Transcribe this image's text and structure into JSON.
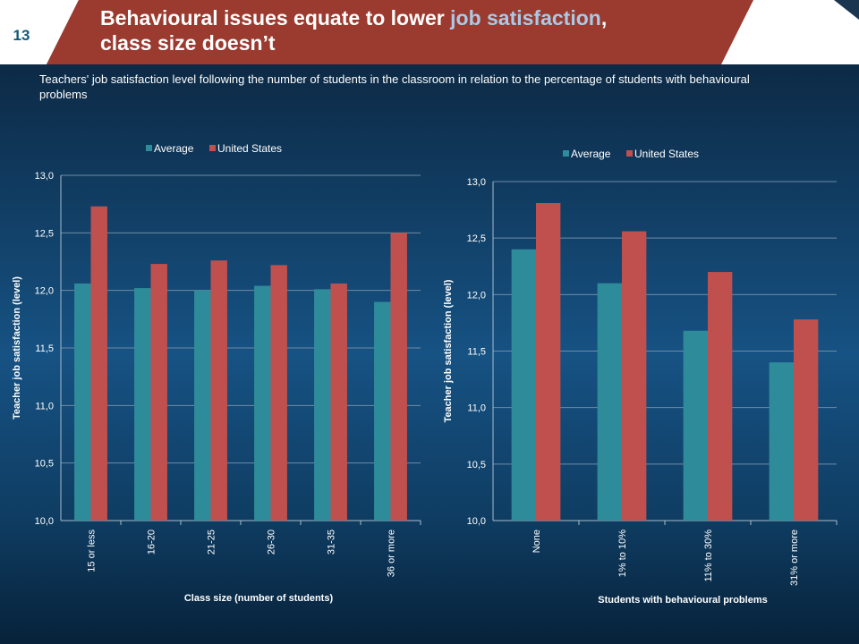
{
  "slide": {
    "number": "13",
    "title_part1": "Behavioural issues equate to lower ",
    "title_highlight": "job satisfaction",
    "title_part2": ",",
    "title_line2": "class size doesn’t",
    "subtitle": "Teachers' job satisfaction level following the number of students in the classroom  in relation to the percentage of students with behavioural problems",
    "colors": {
      "band": "#9b3a2f",
      "average": "#2e8c9a",
      "united_states": "#c0504d",
      "highlight": "#a9c9e6"
    }
  },
  "chart_data": [
    {
      "type": "bar",
      "title": "",
      "xlabel": "Class size (number of students)",
      "ylabel": "Teacher job satisfaction (level)",
      "categories": [
        "15 or less",
        "16-20",
        "21-25",
        "26-30",
        "31-35",
        "36 or more"
      ],
      "series": [
        {
          "name": "Average",
          "values": [
            12.06,
            12.02,
            12.0,
            12.04,
            12.01,
            11.9
          ]
        },
        {
          "name": "United States",
          "values": [
            12.73,
            12.23,
            12.26,
            12.22,
            12.06,
            12.5
          ]
        }
      ],
      "ylim": [
        10.0,
        13.0
      ],
      "yticks": [
        "10,0",
        "10,5",
        "11,0",
        "11,5",
        "12,0",
        "12,5",
        "13,0"
      ],
      "legend": "top",
      "grid": true
    },
    {
      "type": "bar",
      "title": "",
      "xlabel": "Students with behavioural problems",
      "ylabel": "Teacher job satisfaction (level)",
      "categories": [
        "None",
        "1% to 10%",
        "11% to 30%",
        "31% or more"
      ],
      "series": [
        {
          "name": "Average",
          "values": [
            12.4,
            12.1,
            11.68,
            11.4
          ]
        },
        {
          "name": "United States",
          "values": [
            12.81,
            12.56,
            12.2,
            11.78
          ]
        }
      ],
      "ylim": [
        10.0,
        13.0
      ],
      "yticks": [
        "10,0",
        "10,5",
        "11,0",
        "11,5",
        "12,0",
        "12,5",
        "13,0"
      ],
      "legend": "top",
      "grid": true
    }
  ]
}
